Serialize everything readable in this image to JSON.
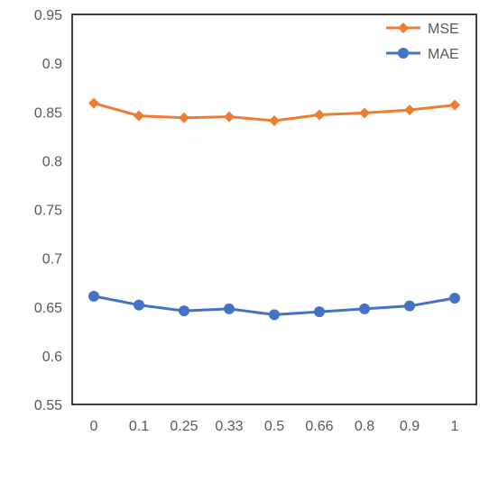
{
  "chart_data": {
    "type": "line",
    "title": "",
    "xlabel": "",
    "ylabel": "",
    "categories": [
      "0",
      "0.1",
      "0.25",
      "0.33",
      "0.5",
      "0.66",
      "0.8",
      "0.9",
      "1"
    ],
    "ylim": [
      0.55,
      0.95
    ],
    "y_ticks": [
      0.55,
      0.6,
      0.65,
      0.7,
      0.75,
      0.8,
      0.85,
      0.9,
      0.95
    ],
    "y_tick_labels": [
      "0.55",
      "0.6",
      "0.65",
      "0.7",
      "0.75",
      "0.8",
      "0.85",
      "0.9",
      "0.95"
    ],
    "grid": false,
    "legend_position": "top-right",
    "series": [
      {
        "name": "MSE",
        "color": "#ED7D31",
        "marker": "diamond",
        "values": [
          0.859,
          0.846,
          0.844,
          0.845,
          0.841,
          0.847,
          0.849,
          0.852,
          0.857
        ]
      },
      {
        "name": "MAE",
        "color": "#4472C4",
        "marker": "circle",
        "values": [
          0.661,
          0.652,
          0.646,
          0.648,
          0.642,
          0.645,
          0.648,
          0.651,
          0.659
        ]
      }
    ]
  }
}
